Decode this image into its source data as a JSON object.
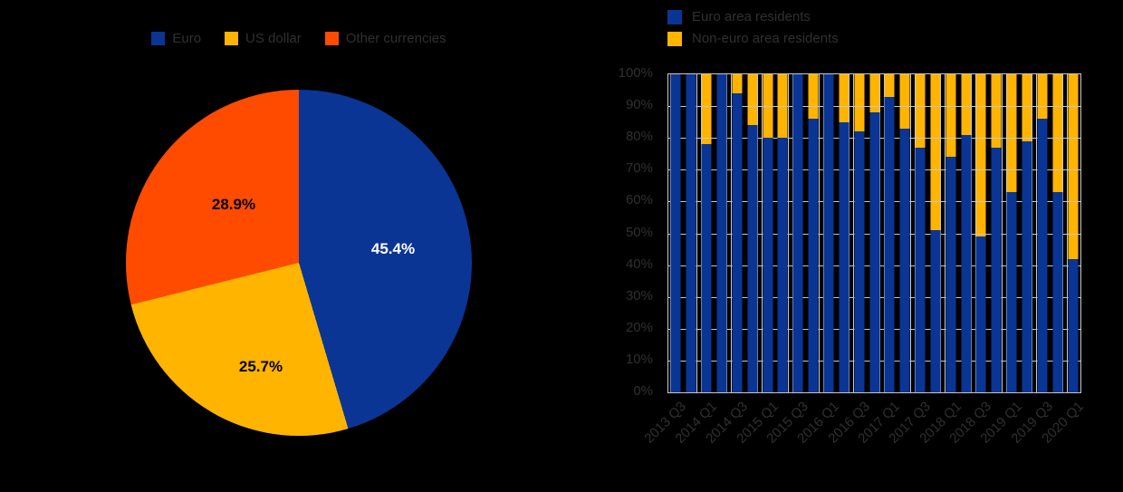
{
  "colors": {
    "background": "#000000",
    "gridline": "#c8c8c8",
    "axis_text": "#303030",
    "blue": "#0a3594",
    "yellow": "#ffb400",
    "orange": "#ff4b00"
  },
  "chart_data": [
    {
      "type": "pie",
      "title": "",
      "legend_position": "top-center",
      "start_angle": "12 o'clock",
      "direction": "clockwise",
      "slices": [
        {
          "label": "Euro",
          "value": 45.4,
          "value_label": "45.4%",
          "color": "#0a3594",
          "text_color": "#ffffff"
        },
        {
          "label": "US dollar",
          "value": 25.7,
          "value_label": "25.7%",
          "color": "#ffb400",
          "text_color": "#000000"
        },
        {
          "label": "Other currencies",
          "value": 28.9,
          "value_label": "28.9%",
          "color": "#ff4b00",
          "text_color": "#000000"
        }
      ]
    },
    {
      "type": "bar",
      "stacked": true,
      "unit": "%",
      "title": "",
      "legend_position": "top-left",
      "grid": true,
      "ylim": [
        0,
        100
      ],
      "y_tick_labels": [
        "100%",
        "90%",
        "80%",
        "70%",
        "60%",
        "50%",
        "40%",
        "30%",
        "20%",
        "10%",
        "0%"
      ],
      "categories": [
        "2013 Q3",
        "2013 Q4",
        "2014 Q1",
        "2014 Q2",
        "2014 Q3",
        "2014 Q4",
        "2015 Q1",
        "2015 Q2",
        "2015 Q3",
        "2015 Q4",
        "2016 Q1",
        "2016 Q2",
        "2016 Q3",
        "2016 Q4",
        "2017 Q1",
        "2017 Q2",
        "2017 Q3",
        "2017 Q4",
        "2018 Q1",
        "2018 Q2",
        "2018 Q3",
        "2018 Q4",
        "2019 Q1",
        "2019 Q2",
        "2019 Q3",
        "2019 Q4",
        "2020 Q1"
      ],
      "x_tick_labels": [
        "2013 Q3",
        "2014 Q1",
        "2014 Q3",
        "2015 Q1",
        "2015 Q3",
        "2016 Q1",
        "2016 Q3",
        "2017 Q1",
        "2017 Q3",
        "2018 Q1",
        "2018 Q3",
        "2019 Q1",
        "2019 Q3",
        "2020 Q1"
      ],
      "series": [
        {
          "name": "Euro area residents",
          "color": "#0a3594",
          "values": [
            100,
            100,
            78,
            100,
            94,
            84,
            80,
            80,
            100,
            86,
            100,
            85,
            82,
            88,
            93,
            83,
            77,
            51,
            74,
            81,
            49,
            77,
            63,
            79,
            86,
            63,
            42
          ]
        },
        {
          "name": "Non-euro area residents",
          "color": "#ffb400",
          "values": [
            0,
            0,
            22,
            0,
            6,
            16,
            20,
            20,
            0,
            14,
            0,
            15,
            18,
            12,
            7,
            17,
            23,
            49,
            26,
            19,
            51,
            23,
            37,
            21,
            14,
            37,
            58
          ]
        }
      ]
    }
  ]
}
